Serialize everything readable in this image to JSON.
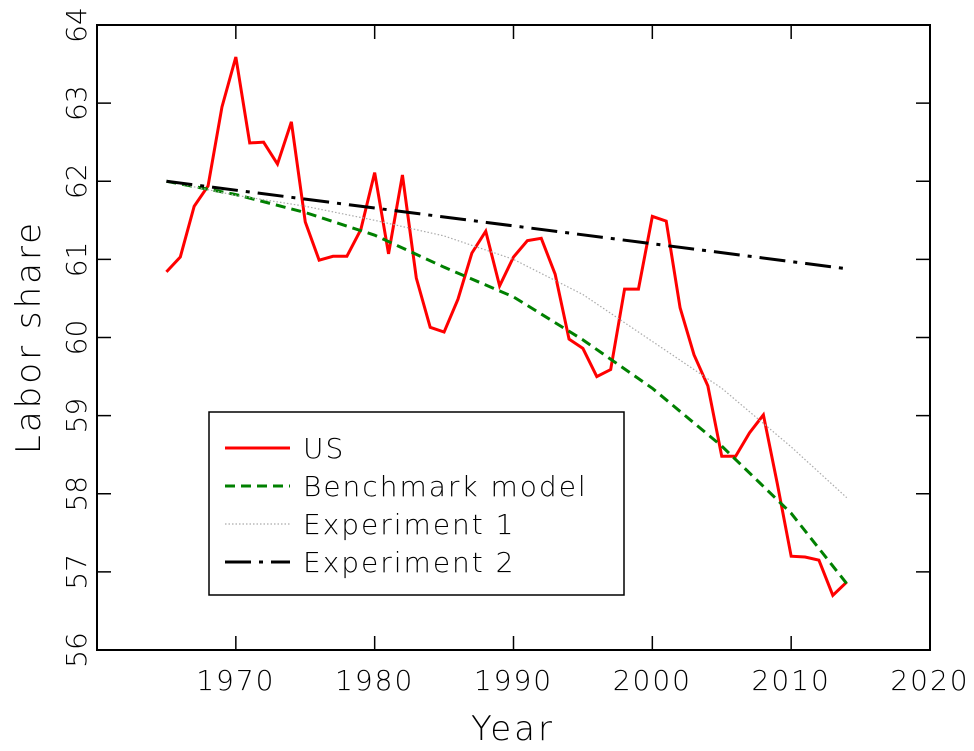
{
  "chart_data": {
    "type": "line",
    "xlabel": "Year",
    "ylabel": "Labor share",
    "xlim": [
      1960,
      2020
    ],
    "xticks": [
      1970,
      1980,
      1990,
      2000,
      2010,
      2020
    ],
    "ylim": [
      56,
      64
    ],
    "yticks": [
      56,
      57,
      58,
      59,
      60,
      61,
      62,
      63,
      64
    ],
    "legend": "lower left",
    "series": [
      {
        "name": "US",
        "color": "#ff0000",
        "dash": "solid",
        "x": [
          1965,
          1966,
          1967,
          1968,
          1969,
          1970,
          1971,
          1972,
          1973,
          1974,
          1975,
          1976,
          1977,
          1978,
          1979,
          1980,
          1981,
          1982,
          1983,
          1984,
          1985,
          1986,
          1987,
          1988,
          1989,
          1990,
          1991,
          1992,
          1993,
          1994,
          1995,
          1996,
          1997,
          1998,
          1999,
          2000,
          2001,
          2002,
          2003,
          2004,
          2005,
          2006,
          2007,
          2008,
          2009,
          2010,
          2011,
          2012,
          2013,
          2014
        ],
        "values": [
          60.84,
          61.03,
          61.68,
          61.94,
          62.95,
          63.59,
          62.49,
          62.5,
          62.22,
          62.76,
          61.48,
          60.99,
          61.04,
          61.04,
          61.38,
          62.11,
          61.07,
          62.08,
          60.76,
          60.13,
          60.07,
          60.49,
          61.08,
          61.36,
          60.66,
          61.03,
          61.24,
          61.27,
          60.81,
          59.98,
          59.86,
          59.5,
          59.59,
          60.62,
          60.62,
          61.55,
          61.49,
          60.38,
          59.78,
          59.38,
          58.48,
          58.48,
          58.78,
          59.01,
          58.13,
          57.2,
          57.19,
          57.15,
          56.7,
          56.87
        ]
      },
      {
        "name": "Benchmark model",
        "color": "#008000",
        "dash": "dashed",
        "x": [
          1965,
          1970,
          1975,
          1980,
          1985,
          1990,
          1995,
          2000,
          2005,
          2010,
          2014
        ],
        "values": [
          62.0,
          61.83,
          61.6,
          61.31,
          60.9,
          60.52,
          59.97,
          59.35,
          58.61,
          57.75,
          56.85
        ]
      },
      {
        "name": "Experiment 1",
        "color": "#aaaaaa",
        "dash": "dotted",
        "x": [
          1965,
          1970,
          1975,
          1980,
          1985,
          1990,
          1995,
          2000,
          2005,
          2010,
          2014
        ],
        "values": [
          62.0,
          61.82,
          61.68,
          61.5,
          61.3,
          61.0,
          60.55,
          59.95,
          59.35,
          58.6,
          57.95
        ]
      },
      {
        "name": "Experiment 2",
        "color": "#000000",
        "dash": "dashdot",
        "x": [
          1965,
          2014
        ],
        "values": [
          62.0,
          60.88
        ]
      }
    ]
  }
}
